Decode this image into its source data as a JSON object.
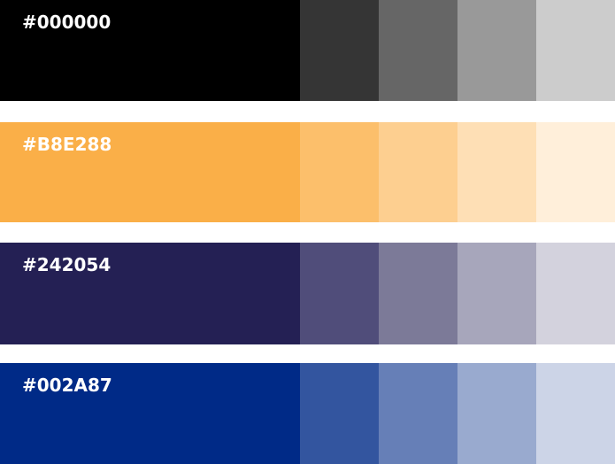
{
  "palette": [
    {
      "label": "#000000",
      "main_color": "#000000",
      "tints": [
        "#353535",
        "#666666",
        "#999999",
        "#cccccc"
      ]
    },
    {
      "label": "#B8E288",
      "main_color": "#faaf48",
      "tints": [
        "#fcbf6b",
        "#fdcf90",
        "#fedfb5",
        "#ffefda"
      ]
    },
    {
      "label": "#242054",
      "main_color": "#242054",
      "tints": [
        "#504d7a",
        "#7c7a98",
        "#a7a6bb",
        "#d3d2dd"
      ]
    },
    {
      "label": "#002A87",
      "main_color": "#002a87",
      "tints": [
        "#33559f",
        "#667fb7",
        "#99aacf",
        "#ccd4e7"
      ]
    }
  ]
}
